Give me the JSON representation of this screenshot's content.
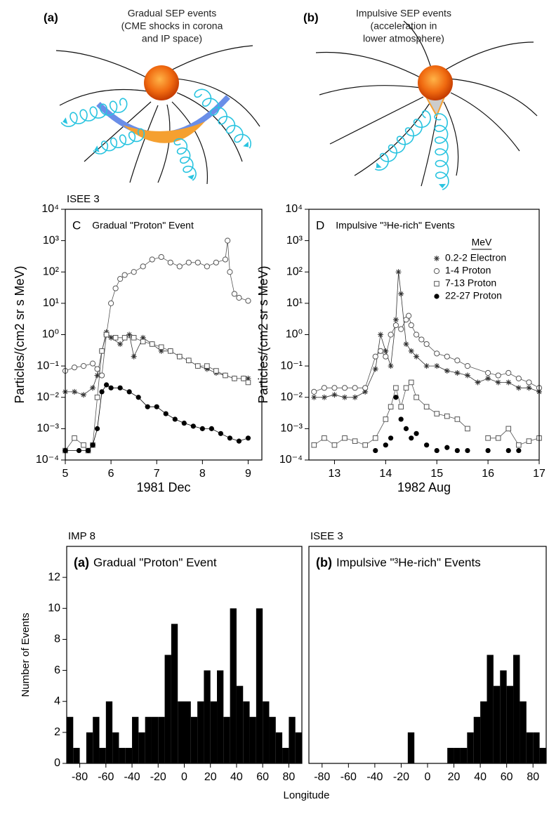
{
  "diagrams": [
    {
      "label": "(a)",
      "lines": [
        "Gradual SEP events",
        "(CME shocks in corona",
        "and IP    space)"
      ]
    },
    {
      "label": "(b)",
      "lines": [
        "Impulsive SEP events",
        "(acceleration in",
        "lower atmosphere)"
      ]
    }
  ],
  "chart_data": [
    {
      "type": "line",
      "subtitle": "ISEE 3",
      "panel_label": "C",
      "title": "Gradual \"Proton\" Event",
      "xlabel": "1981 Dec",
      "ylabel": "Particles/(cm2 sr s MeV)",
      "yscale": "log",
      "xlim": [
        5,
        9.3
      ],
      "xticks": [
        5,
        6,
        7,
        8,
        9
      ],
      "ylim": [
        0.0001,
        10000
      ],
      "yticks": [
        {
          "value": 0.0001,
          "label": "10⁻⁴"
        },
        {
          "value": 0.001,
          "label": "10⁻³"
        },
        {
          "value": 0.01,
          "label": "10⁻²"
        },
        {
          "value": 0.1,
          "label": "10⁻¹"
        },
        {
          "value": 1,
          "label": "10⁰"
        },
        {
          "value": 10,
          "label": "10¹"
        },
        {
          "value": 100,
          "label": "10²"
        },
        {
          "value": 1000,
          "label": "10³"
        },
        {
          "value": 10000,
          "label": "10⁴"
        }
      ],
      "series": [
        {
          "marker": "asterisk",
          "color": "#333333",
          "x": [
            5.0,
            5.2,
            5.4,
            5.6,
            5.7,
            5.8,
            5.9,
            6.0,
            6.2,
            6.4,
            6.5,
            6.7,
            6.9,
            7.1,
            7.3,
            7.5,
            7.7,
            7.9,
            8.1,
            8.3,
            8.5,
            8.7,
            8.9,
            9.0
          ],
          "values": [
            0.015,
            0.015,
            0.012,
            0.02,
            0.05,
            0.3,
            1.2,
            0.8,
            0.5,
            1,
            0.2,
            0.8,
            0.5,
            0.3,
            0.3,
            0.2,
            0.15,
            0.1,
            0.08,
            0.06,
            0.05,
            0.04,
            0.04,
            0.04
          ]
        },
        {
          "marker": "circle",
          "color": "#555555",
          "x": [
            5.0,
            5.2,
            5.4,
            5.6,
            5.7,
            5.8,
            5.9,
            6.0,
            6.1,
            6.2,
            6.3,
            6.5,
            6.7,
            6.9,
            7.1,
            7.3,
            7.5,
            7.7,
            7.9,
            8.1,
            8.3,
            8.5,
            8.55,
            8.6,
            8.7,
            8.8,
            9.0
          ],
          "values": [
            0.07,
            0.09,
            0.1,
            0.12,
            0.08,
            0.05,
            1,
            10,
            30,
            60,
            80,
            100,
            150,
            250,
            300,
            200,
            150,
            200,
            200,
            150,
            200,
            250,
            1000,
            100,
            20,
            15,
            12
          ]
        },
        {
          "marker": "square",
          "color": "#555555",
          "x": [
            5.0,
            5.2,
            5.4,
            5.5,
            5.6,
            5.7,
            5.8,
            5.9,
            6.1,
            6.3,
            6.5,
            6.7,
            6.9,
            7.1,
            7.3,
            7.5,
            7.7,
            7.9,
            8.1,
            8.3,
            8.5,
            8.7,
            8.9,
            9.0
          ],
          "values": [
            0.0002,
            0.0005,
            0.0003,
            0.0002,
            0.0003,
            0.01,
            0.3,
            1,
            0.8,
            0.8,
            0.8,
            0.6,
            0.5,
            0.4,
            0.3,
            0.2,
            0.15,
            0.1,
            0.1,
            0.07,
            0.05,
            0.04,
            0.04,
            0.03
          ]
        },
        {
          "marker": "dot",
          "color": "#000000",
          "x": [
            5.0,
            5.3,
            5.5,
            5.6,
            5.7,
            5.8,
            5.9,
            6.0,
            6.2,
            6.4,
            6.6,
            6.8,
            7.0,
            7.2,
            7.4,
            7.6,
            7.8,
            8.0,
            8.2,
            8.4,
            8.6,
            8.8,
            9.0
          ],
          "values": [
            0.0002,
            0.0002,
            0.0002,
            0.0003,
            0.001,
            0.015,
            0.025,
            0.02,
            0.02,
            0.015,
            0.01,
            0.005,
            0.005,
            0.003,
            0.002,
            0.0015,
            0.0012,
            0.001,
            0.001,
            0.0007,
            0.0005,
            0.0004,
            0.0005
          ]
        }
      ]
    },
    {
      "type": "line",
      "panel_label": "D",
      "title": "Impulsive \"³He-rich\" Events",
      "xlabel": "1982 Aug",
      "ylabel": "Particles/(cm2 sr s MeV)",
      "yscale": "log",
      "xlim": [
        12.5,
        17
      ],
      "xticks": [
        13,
        14,
        15,
        16,
        17
      ],
      "ylim": [
        0.0001,
        10000
      ],
      "yticks": [
        {
          "value": 0.0001,
          "label": "10⁻⁴"
        },
        {
          "value": 0.001,
          "label": "10⁻³"
        },
        {
          "value": 0.01,
          "label": "10⁻²"
        },
        {
          "value": 0.1,
          "label": "10⁻¹"
        },
        {
          "value": 1,
          "label": "10⁰"
        },
        {
          "value": 10,
          "label": "10¹"
        },
        {
          "value": 100,
          "label": "10²"
        },
        {
          "value": 1000,
          "label": "10³"
        },
        {
          "value": 10000,
          "label": "10⁴"
        }
      ],
      "legend": "upper right",
      "legend_title": "MeV",
      "series": [
        {
          "name": "0.2-2 Electron",
          "marker": "asterisk",
          "color": "#333333",
          "x": [
            12.6,
            12.8,
            13.0,
            13.2,
            13.4,
            13.6,
            13.8,
            13.9,
            14.0,
            14.1,
            14.2,
            14.25,
            14.3,
            14.4,
            14.5,
            14.6,
            14.8,
            15.0,
            15.2,
            15.4,
            15.6,
            15.8,
            16.0,
            16.2,
            16.4,
            16.6,
            16.8,
            17.0
          ],
          "values": [
            0.01,
            0.01,
            0.012,
            0.01,
            0.01,
            0.015,
            0.08,
            1,
            0.3,
            0.1,
            3,
            100,
            20,
            0.5,
            0.3,
            0.2,
            0.1,
            0.1,
            0.07,
            0.06,
            0.05,
            0.03,
            0.04,
            0.03,
            0.03,
            0.02,
            0.02,
            0.015
          ]
        },
        {
          "name": "1-4 Proton",
          "marker": "circle",
          "color": "#555555",
          "x": [
            12.6,
            12.8,
            13.0,
            13.2,
            13.4,
            13.6,
            13.8,
            13.9,
            14.0,
            14.1,
            14.2,
            14.3,
            14.4,
            14.45,
            14.5,
            14.6,
            14.7,
            14.8,
            15.0,
            15.2,
            15.4,
            15.6,
            16.0,
            16.2,
            16.4,
            16.6,
            16.8,
            17.0
          ],
          "values": [
            0.015,
            0.02,
            0.02,
            0.02,
            0.02,
            0.02,
            0.2,
            0.3,
            0.2,
            1,
            2,
            1.5,
            3,
            4,
            2,
            1,
            0.7,
            0.5,
            0.25,
            0.2,
            0.15,
            0.1,
            0.06,
            0.05,
            0.06,
            0.04,
            0.03,
            0.02
          ]
        },
        {
          "name": "7-13 Proton",
          "marker": "square",
          "color": "#555555",
          "x": [
            12.6,
            12.8,
            13.0,
            13.2,
            13.4,
            13.6,
            13.8,
            14.0,
            14.1,
            14.2,
            14.3,
            14.4,
            14.5,
            14.6,
            14.8,
            15.0,
            15.2,
            15.4,
            15.6,
            15.8,
            16.0,
            16.2,
            16.4,
            16.6,
            16.8,
            17.0
          ],
          "values": [
            0.0003,
            0.0005,
            0.0003,
            0.0005,
            0.0004,
            0.0003,
            0.0005,
            0.002,
            0.005,
            0.02,
            0.005,
            0.02,
            0.03,
            0.01,
            0.005,
            0.003,
            0.0025,
            0.002,
            0.001,
            null,
            0.0005,
            0.0005,
            0.001,
            0.0003,
            0.0004,
            0.0005
          ]
        },
        {
          "name": "22-27 Proton",
          "marker": "dot",
          "color": "#000000",
          "line": false,
          "x": [
            13.8,
            14.0,
            14.1,
            14.2,
            14.3,
            14.4,
            14.5,
            14.6,
            14.8,
            15.0,
            15.2,
            15.4,
            15.6,
            16.0,
            16.4,
            16.6
          ],
          "values": [
            0.0002,
            0.0003,
            0.0005,
            0.01,
            0.002,
            0.001,
            0.0005,
            0.0007,
            0.0003,
            0.0002,
            0.00025,
            0.0002,
            0.0002,
            0.0002,
            0.0002,
            0.0002
          ]
        }
      ]
    },
    {
      "type": "histogram",
      "subtitle": "IMP 8",
      "panel_label": "(a)",
      "title": "Gradual \"Proton\" Event",
      "xlabel": "Longitude",
      "ylabel": "Number of Events",
      "color": "#000000",
      "bins": [
        -90,
        -85,
        -80,
        -75,
        -70,
        -65,
        -60,
        -55,
        -50,
        -45,
        -40,
        -35,
        -30,
        -25,
        -20,
        -15,
        -10,
        -5,
        0,
        5,
        10,
        15,
        20,
        25,
        30,
        35,
        40,
        45,
        50,
        55,
        60,
        65,
        70,
        75,
        80,
        85,
        90
      ],
      "values": [
        3,
        1,
        0,
        2,
        3,
        1,
        4,
        2,
        1,
        1,
        3,
        2,
        3,
        3,
        3,
        7,
        9,
        4,
        4,
        3,
        4,
        6,
        4,
        6,
        3,
        10,
        5,
        4,
        3,
        10,
        4,
        3,
        2,
        1,
        3,
        2
      ],
      "xlim": [
        -90,
        90
      ],
      "xticks": [
        -80,
        -60,
        -40,
        -20,
        0,
        20,
        40,
        60,
        80
      ],
      "ylim": [
        0,
        14
      ],
      "yticks": [
        0,
        2,
        4,
        6,
        8,
        10,
        12
      ]
    },
    {
      "type": "histogram",
      "subtitle": "ISEE 3",
      "panel_label": "(b)",
      "title": "Impulsive \"³He-rich\" Events",
      "color": "#000000",
      "bins": [
        -90,
        -85,
        -80,
        -75,
        -70,
        -65,
        -60,
        -55,
        -50,
        -45,
        -40,
        -35,
        -30,
        -25,
        -20,
        -15,
        -10,
        -5,
        0,
        5,
        10,
        15,
        20,
        25,
        30,
        35,
        40,
        45,
        50,
        55,
        60,
        65,
        70,
        75,
        80,
        85,
        90
      ],
      "values": [
        0,
        0,
        0,
        0,
        0,
        0,
        0,
        0,
        0,
        0,
        0,
        0,
        0,
        0,
        0,
        2,
        0,
        0,
        0,
        0,
        0,
        1,
        1,
        1,
        2,
        3,
        4,
        7,
        5,
        6,
        5,
        7,
        4,
        2,
        2,
        1
      ],
      "xlim": [
        -90,
        90
      ],
      "xticks": [
        -80,
        -60,
        -40,
        -20,
        0,
        20,
        40,
        60,
        80
      ],
      "ylim": [
        0,
        14
      ]
    }
  ]
}
